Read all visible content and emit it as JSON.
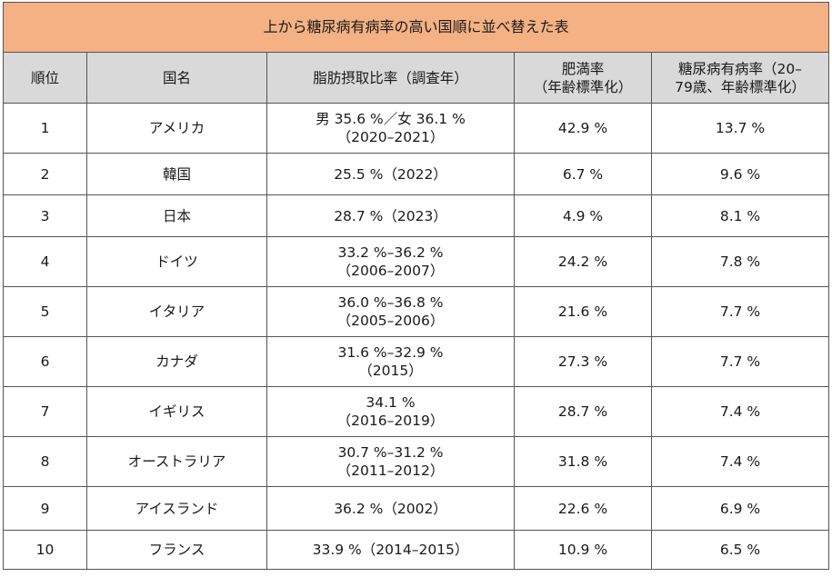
{
  "caption": "上から糖尿病有病率の高い国順に並べ替えた表",
  "headers": {
    "rank": "順位",
    "country": "国名",
    "fat": "脂肪摂取比率（調査年）",
    "obesity_l1": "肥満率",
    "obesity_l2": "（年齢標準化）",
    "diabetes_l1": "糖尿病有病率（20–",
    "diabetes_l2": "79歳、年齢標準化）"
  },
  "rows": [
    {
      "rank": "1",
      "country": "アメリカ",
      "fat_l1": "男 35.6 %／女 36.1 %",
      "fat_l2": "（2020–2021）",
      "obesity": "42.9 %",
      "diabetes": "13.7 %"
    },
    {
      "rank": "2",
      "country": "韓国",
      "fat_l1": "25.5 %（2022）",
      "fat_l2": "",
      "obesity": "6.7 %",
      "diabetes": "9.6 %"
    },
    {
      "rank": "3",
      "country": "日本",
      "fat_l1": "28.7 %（2023）",
      "fat_l2": "",
      "obesity": "4.9 %",
      "diabetes": "8.1 %"
    },
    {
      "rank": "4",
      "country": "ドイツ",
      "fat_l1": "33.2 %–36.2 %",
      "fat_l2": "（2006–2007）",
      "obesity": "24.2 %",
      "diabetes": "7.8 %"
    },
    {
      "rank": "5",
      "country": "イタリア",
      "fat_l1": "36.0 %–36.8 %",
      "fat_l2": "（2005–2006）",
      "obesity": "21.6 %",
      "diabetes": "7.7 %"
    },
    {
      "rank": "6",
      "country": "カナダ",
      "fat_l1": "31.6 %–32.9 %",
      "fat_l2": "（2015）",
      "obesity": "27.3 %",
      "diabetes": "7.7 %"
    },
    {
      "rank": "7",
      "country": "イギリス",
      "fat_l1": "34.1 %",
      "fat_l2": "（2016–2019）",
      "obesity": "28.7 %",
      "diabetes": "7.4 %"
    },
    {
      "rank": "8",
      "country": "オーストラリア",
      "fat_l1": "30.7 %–31.2 %",
      "fat_l2": "（2011–2012）",
      "obesity": "31.8 %",
      "diabetes": "7.4 %"
    },
    {
      "rank": "9",
      "country": "アイスランド",
      "fat_l1": "36.2 %（2002）",
      "fat_l2": "",
      "obesity": "22.6 %",
      "diabetes": "6.9 %"
    },
    {
      "rank": "10",
      "country": "フランス",
      "fat_l1": "33.9 %（2014–2015）",
      "fat_l2": "",
      "obesity": "10.9 %",
      "diabetes": "6.5 %"
    }
  ]
}
